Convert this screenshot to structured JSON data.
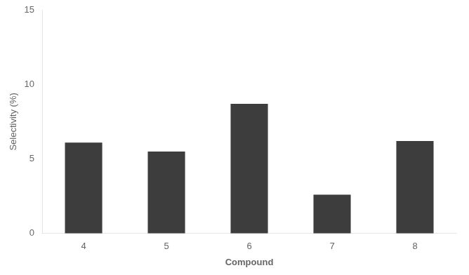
{
  "chart_data": {
    "type": "bar",
    "categories": [
      "4",
      "5",
      "6",
      "7",
      "8"
    ],
    "values": [
      6.1,
      5.5,
      8.7,
      2.6,
      6.2
    ],
    "color": "#3d3d3d",
    "xlabel": "Compound",
    "ylabel": "Selectivity (%)",
    "ylim": [
      0,
      15
    ],
    "yticks": [
      0,
      5,
      10,
      15
    ],
    "grid": false
  }
}
